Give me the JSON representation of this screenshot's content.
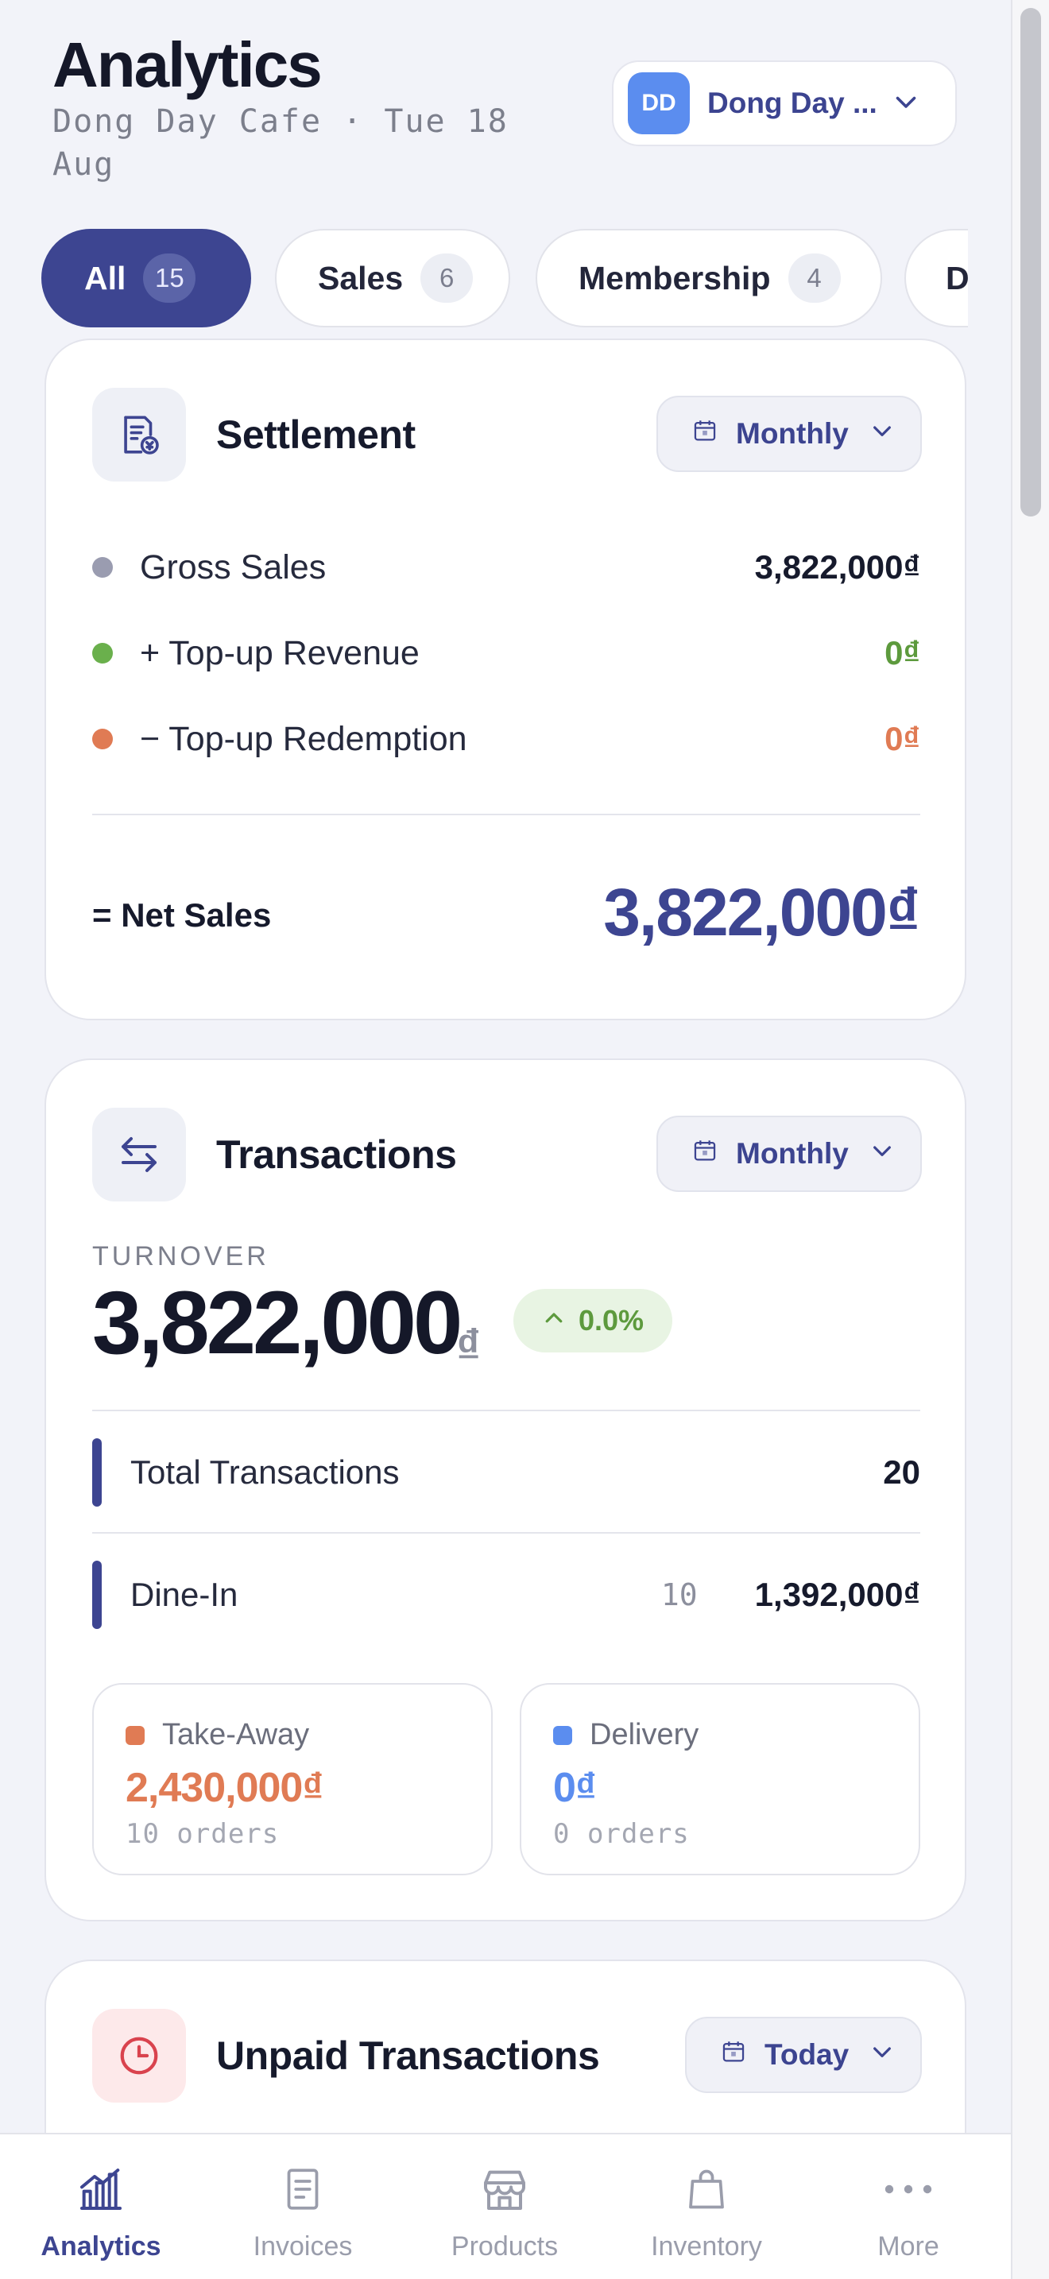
{
  "header": {
    "title": "Analytics",
    "subtitle": "Dong Day Cafe · Tue 18 Aug",
    "store": {
      "initials": "DD",
      "name": "Dong Day ..."
    }
  },
  "filters": [
    {
      "label": "All",
      "count": "15",
      "active": true
    },
    {
      "label": "Sales",
      "count": "6"
    },
    {
      "label": "Membership",
      "count": "4"
    },
    {
      "label": "D"
    }
  ],
  "settlement": {
    "title": "Settlement",
    "period": "Monthly",
    "rows": [
      {
        "label": "Gross Sales",
        "value": "3,822,000₫",
        "color": "#9a9cb0"
      },
      {
        "label": "+ Top-up Revenue",
        "value": "0₫",
        "color": "#6ab04c"
      },
      {
        "label": "− Top-up Redemption",
        "value": "0₫",
        "color": "#e07b54"
      }
    ],
    "net_label": "= Net Sales",
    "net_value": "3,822,000₫"
  },
  "transactions": {
    "title": "Transactions",
    "period": "Monthly",
    "turnover_label": "TURNOVER",
    "turnover_value": "3,822,000",
    "turnover_currency": "₫",
    "trend": "0.0%",
    "total_label": "Total Transactions",
    "total_value": "20",
    "dinein_label": "Dine-In",
    "dinein_count": "10",
    "dinein_value": "1,392,000₫",
    "takeaway": {
      "label": "Take-Away",
      "value": "2,430,000₫",
      "orders": "10 orders",
      "color": "#e07b54"
    },
    "delivery": {
      "label": "Delivery",
      "value": "0₫",
      "orders": "0 orders",
      "color": "#5b8def"
    }
  },
  "unpaid": {
    "title": "Unpaid Transactions",
    "period": "Today"
  },
  "nav": [
    {
      "label": "Analytics",
      "icon": "analytics-icon",
      "active": true
    },
    {
      "label": "Invoices",
      "icon": "invoice-icon"
    },
    {
      "label": "Products",
      "icon": "store-icon"
    },
    {
      "label": "Inventory",
      "icon": "bag-icon"
    },
    {
      "label": "More",
      "icon": "more-icon"
    }
  ]
}
